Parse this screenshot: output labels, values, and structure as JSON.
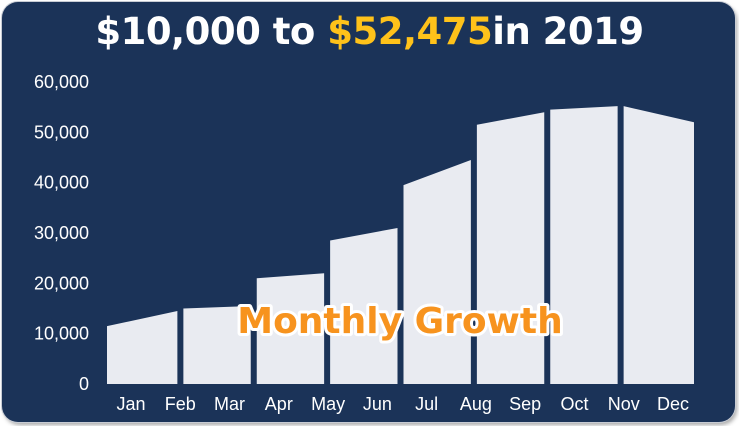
{
  "title": {
    "prefix": "$10,000 to ",
    "highlight": "$52,475",
    "suffix": "in 2019"
  },
  "overlay_label": "Monthly Growth",
  "colors": {
    "background": "#1b3358",
    "area_fill": "#e9ebf1",
    "highlight": "#ffc21a",
    "overlay_text": "#f7931e"
  },
  "chart_data": {
    "type": "area",
    "title": "$10,000 to $52,475 in 2019",
    "overlay_text": "Monthly Growth",
    "categories": [
      "Jan",
      "Feb",
      "Mar",
      "Apr",
      "May",
      "Jun",
      "Jul",
      "Aug",
      "Sep",
      "Oct",
      "Nov",
      "Dec"
    ],
    "series": [
      {
        "segments": [
          [
            11500,
            14500
          ],
          [
            15000,
            15500
          ],
          [
            21000,
            22000
          ],
          [
            28500,
            31000
          ],
          [
            39500,
            44500
          ],
          [
            51500,
            54000
          ],
          [
            54500,
            55200
          ],
          [
            55200,
            52000
          ]
        ]
      }
    ],
    "y_ticks": [
      "0",
      "10,000",
      "20,000",
      "30,000",
      "40,000",
      "50,000",
      "60,000"
    ],
    "ylim": [
      0,
      60000
    ],
    "grid": false,
    "legend": "none"
  }
}
